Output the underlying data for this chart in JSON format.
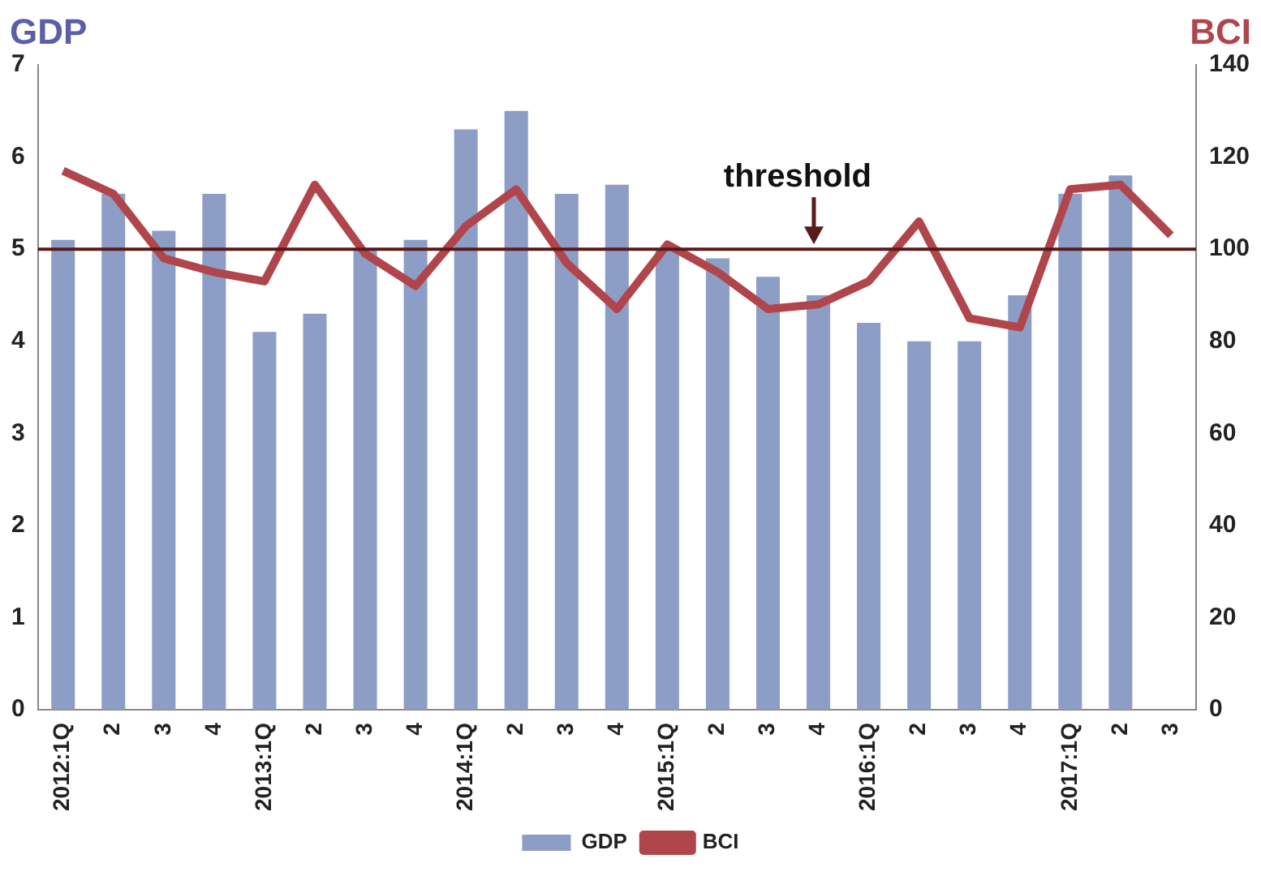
{
  "chart_data": {
    "type": "bar",
    "ylabel": "GDP",
    "y2label": "BCI",
    "categories": [
      "2012:1Q",
      "2",
      "3",
      "4",
      "2013:1Q",
      "2",
      "3",
      "4",
      "2014:1Q",
      "2",
      "3",
      "4",
      "2015:1Q",
      "2",
      "3",
      "4",
      "2016:1Q",
      "2",
      "3",
      "4",
      "2017:1Q",
      "2",
      "3"
    ],
    "series": [
      {
        "name": "GDP",
        "color": "#8c9dc6",
        "values": [
          5.1,
          5.6,
          5.2,
          5.6,
          4.1,
          4.3,
          5.0,
          5.1,
          6.3,
          6.5,
          5.6,
          5.7,
          5.0,
          4.9,
          4.7,
          4.5,
          4.2,
          4.0,
          4.0,
          4.5,
          5.6,
          5.8,
          null
        ]
      },
      {
        "name": "BCI",
        "type": "line",
        "axis": "y2",
        "color": "#b0464c",
        "values": [
          117,
          112,
          98,
          95,
          93,
          114,
          99,
          92,
          105,
          113,
          97,
          87,
          101,
          95,
          87,
          88,
          93,
          106,
          85,
          83,
          113,
          114,
          103
        ]
      }
    ],
    "ylim": [
      0,
      7
    ],
    "yticks": [
      0,
      1,
      2,
      3,
      4,
      5,
      6,
      7
    ],
    "y2lim": [
      0,
      140
    ],
    "y2ticks": [
      0,
      20,
      40,
      60,
      80,
      100,
      120,
      140
    ],
    "ref_lines": [
      {
        "axis": "y",
        "value": 5,
        "label": "threshold",
        "color": "#5a1a1a"
      }
    ],
    "legend": "bottom",
    "grid": false,
    "marker": "none",
    "line_style": "solid"
  }
}
